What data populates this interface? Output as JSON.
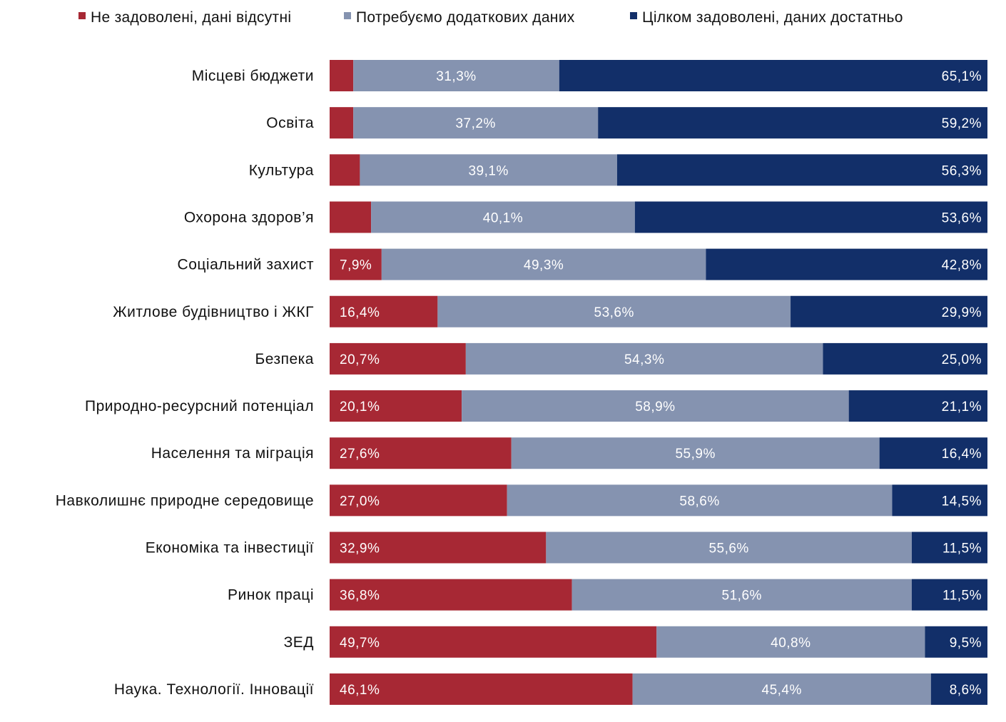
{
  "chart_data": {
    "type": "bar",
    "orientation": "horizontal",
    "stacked": true,
    "title": "",
    "xlabel": "",
    "ylabel": "",
    "xlim": [
      0,
      100
    ],
    "grid": false,
    "legend_position": "top",
    "categories": [
      "Місцеві бюджети",
      "Освіта",
      "Культура",
      "Охорона здоров’я",
      "Соціальний захист",
      "Житлове будівництво і ЖКГ",
      "Безпека",
      "Природно-ресурсний потенціал",
      "Населення та міграція",
      "Навколишнє природне середовище",
      "Економіка та інвестиції",
      "Ринок праці",
      "ЗЕД",
      "Наука. Технології. Інновації"
    ],
    "series": [
      {
        "name": "Не задоволені, дані відсутні",
        "color": "#A72834",
        "values": [
          3.6,
          3.6,
          4.6,
          6.3,
          7.9,
          16.4,
          20.7,
          20.1,
          27.6,
          27.0,
          32.9,
          36.8,
          49.7,
          46.1
        ],
        "labels": [
          null,
          null,
          null,
          null,
          "7,9%",
          "16,4%",
          "20,7%",
          "20,1%",
          "27,6%",
          "27,0%",
          "32,9%",
          "36,8%",
          "49,7%",
          "46,1%"
        ]
      },
      {
        "name": "Потребуємо додаткових даних",
        "color": "#8593B0",
        "values": [
          31.3,
          37.2,
          39.1,
          40.1,
          49.3,
          53.6,
          54.3,
          58.9,
          55.9,
          58.6,
          55.6,
          51.6,
          40.8,
          45.4
        ],
        "labels": [
          "31,3%",
          "37,2%",
          "39,1%",
          "40,1%",
          "49,3%",
          "53,6%",
          "54,3%",
          "58,9%",
          "55,9%",
          "58,6%",
          "55,6%",
          "51,6%",
          "40,8%",
          "45,4%"
        ]
      },
      {
        "name": "Цілком задоволені, даних достатньо",
        "color": "#122F69",
        "values": [
          65.1,
          59.2,
          56.3,
          53.6,
          42.8,
          29.9,
          25.0,
          21.1,
          16.4,
          14.5,
          11.5,
          11.5,
          9.5,
          8.6
        ],
        "labels": [
          "65,1%",
          "59,2%",
          "56,3%",
          "53,6%",
          "42,8%",
          "29,9%",
          "25,0%",
          "21,1%",
          "16,4%",
          "14,5%",
          "11,5%",
          "11,5%",
          "9,5%",
          "8,6%"
        ]
      }
    ]
  }
}
